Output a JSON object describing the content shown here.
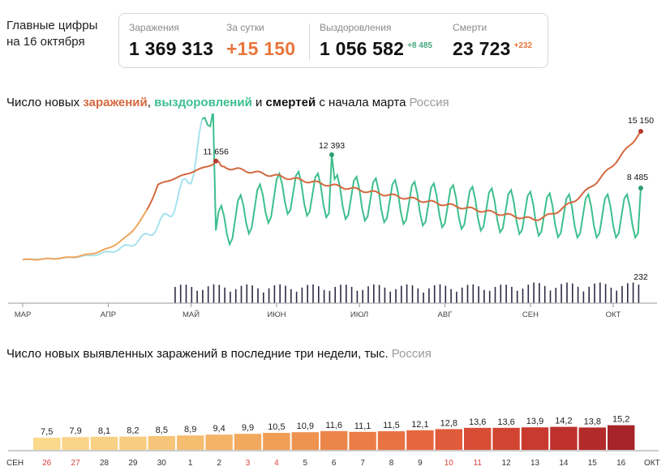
{
  "header": {
    "title_line1": "Главные цифры",
    "title_line2": "на 16 октября"
  },
  "stats": {
    "infections": {
      "label": "Заражения",
      "value": "1 369 313"
    },
    "daily": {
      "label": "За сутки",
      "value": "+15 150",
      "color": "#e8753c"
    },
    "recovered": {
      "label": "Выздоровления",
      "value": "1 056 582",
      "delta": "+8 485",
      "delta_color": "#45a67f"
    },
    "deaths": {
      "label": "Смерти",
      "value": "23 723",
      "delta": "+232",
      "delta_color": "#e8753c"
    }
  },
  "chart1": {
    "title_pre": "Число новых ",
    "title_infections": "заражений",
    "title_sep1": ", ",
    "title_recoveries": "выздоровлений",
    "title_sep2": " и ",
    "title_deaths": "смертей",
    "title_post": " с начала марта",
    "region": "Россия",
    "colors": {
      "infections": "#d4683f",
      "infections_early": "#f0a65b",
      "recoveries": "#3dbf8e",
      "recoveries_early": "#a6e3ee",
      "deaths": "#2b2b45"
    }
  },
  "chart2": {
    "title": "Число новых выявленных заражений в последние три недели, тыс.",
    "region": "Россия"
  },
  "chart_data": [
    {
      "type": "line",
      "x_axis_labels": [
        "МАР",
        "АПР",
        "МАЙ",
        "ИЮН",
        "ИЮЛ",
        "АВГ",
        "СЕН",
        "ОКТ"
      ],
      "series": [
        {
          "name": "заражений",
          "annotations": [
            {
              "label": "11 656",
              "value": 11656
            },
            {
              "label": "15 150",
              "value": 15150
            }
          ]
        },
        {
          "name": "выздоровлений",
          "annotations": [
            {
              "label": "12 393",
              "value": 12393
            },
            {
              "label": "8 485",
              "value": 8485
            }
          ]
        },
        {
          "name": "смертей",
          "annotations": [
            {
              "label": "232",
              "value": 232
            }
          ]
        }
      ]
    },
    {
      "type": "bar",
      "categories": [
        "26",
        "27",
        "28",
        "29",
        "30",
        "1",
        "2",
        "3",
        "4",
        "5",
        "6",
        "7",
        "8",
        "9",
        "10",
        "11",
        "12",
        "13",
        "14",
        "15",
        "16"
      ],
      "values": [
        7.5,
        7.9,
        8.1,
        8.2,
        8.5,
        8.9,
        9.4,
        9.9,
        10.5,
        10.9,
        11.6,
        11.1,
        11.5,
        12.1,
        12.8,
        13.6,
        13.6,
        13.9,
        14.2,
        13.8,
        15.2
      ],
      "value_labels": [
        "7,5",
        "7,9",
        "8,1",
        "8,2",
        "8,5",
        "8,9",
        "9,4",
        "9,9",
        "10,5",
        "10,9",
        "11,6",
        "11,1",
        "11,5",
        "12,1",
        "12,8",
        "13,6",
        "13,6",
        "13,9",
        "14,2",
        "13,8",
        "15,2"
      ],
      "weekend_days": [
        "26",
        "27",
        "3",
        "4",
        "10",
        "11"
      ],
      "month_labels": [
        "СЕН",
        "ОКТ"
      ],
      "colors": [
        "#fbd98c",
        "#fad589",
        "#f9d184",
        "#f8cd7f",
        "#f7c579",
        "#f5bd70",
        "#f4b367",
        "#f2a95e",
        "#f09e56",
        "#ee9350",
        "#ec8549",
        "#eb7c45",
        "#e97242",
        "#e6673f",
        "#e05b3b",
        "#d84d36",
        "#d14432",
        "#c83a2f",
        "#be302c",
        "#b32a2a",
        "#a62328"
      ],
      "weekend_label_color": "#d8423a"
    }
  ]
}
